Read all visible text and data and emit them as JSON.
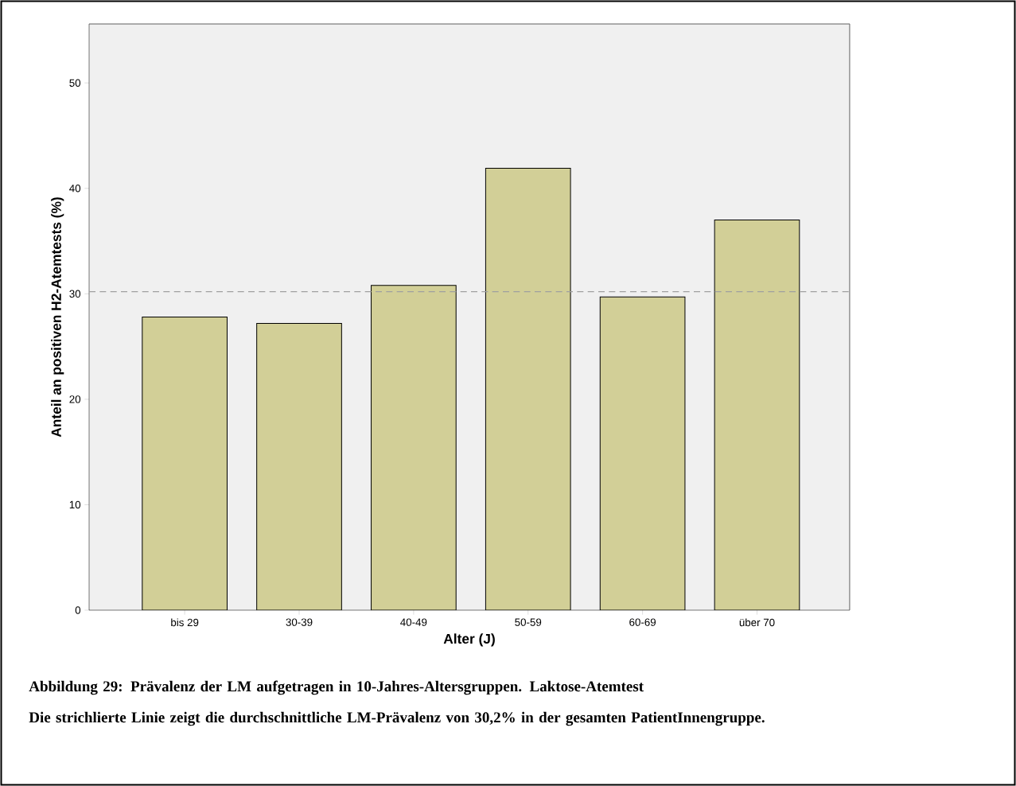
{
  "chart_data": {
    "type": "bar",
    "categories": [
      "bis 29",
      "30-39",
      "40-49",
      "50-59",
      "60-69",
      "über 70"
    ],
    "values": [
      27.8,
      27.2,
      30.8,
      41.9,
      29.7,
      37.0
    ],
    "color": "#d2cf97",
    "ylim": [
      0,
      55.6
    ],
    "yticks": [
      0,
      10,
      20,
      30,
      40,
      50
    ],
    "xlabel": "Alter (J)",
    "ylabel": "Anteil an positiven H2-Atemtests (%)",
    "ref_lines": [
      {
        "axis": "y",
        "value": 30.2,
        "color": "#a0a0a0",
        "line_style": "dashed"
      }
    ],
    "annotations": [
      "Abbildung 29: Prävalenz der LM aufgetragen in 10-Jahres-Altersgruppen. Laktose-Atemtest",
      "Die strichlierte Linie zeigt die durchschnittliche LM-Prävalenz von 30,2% in der gesamten PatientInnengruppe."
    ]
  }
}
